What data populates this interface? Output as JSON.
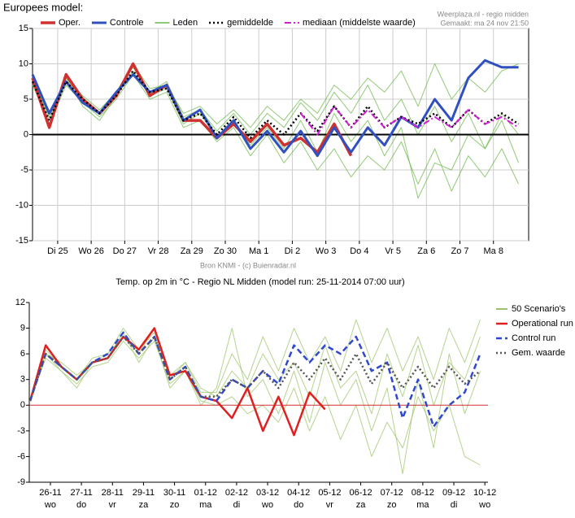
{
  "chart_data": [
    {
      "type": "line",
      "title": "Europees model:",
      "source": "Weerplaza.nl - regio midden",
      "created": "Gemaakt: ma 24 nov 21:50",
      "footer": "Bron KNMI - (c) Buienradar.nl",
      "x": [
        -0.25,
        0.25,
        0.75,
        1.25,
        1.75,
        2.25,
        2.75,
        3.25,
        3.75,
        4.25,
        4.75,
        5.25,
        5.75,
        6.25,
        6.75,
        7.25,
        7.75,
        8.25,
        8.75,
        9.25,
        9.75,
        10.25,
        10.75,
        11.25,
        11.75,
        12.25,
        12.75,
        13.25,
        13.75,
        14.25
      ],
      "xlim": [
        -0.25,
        14.55
      ],
      "xticks": [
        {
          "value": 0.5,
          "label": "Di 25"
        },
        {
          "value": 1.5,
          "label": "Wo 26"
        },
        {
          "value": 2.5,
          "label": "Do 27"
        },
        {
          "value": 3.5,
          "label": "Vr 28"
        },
        {
          "value": 4.5,
          "label": "Za 29"
        },
        {
          "value": 5.5,
          "label": "Zo 30"
        },
        {
          "value": 6.5,
          "label": "Ma 1"
        },
        {
          "value": 7.5,
          "label": "Di 2"
        },
        {
          "value": 8.5,
          "label": "Wo 3"
        },
        {
          "value": 9.5,
          "label": "Do 4"
        },
        {
          "value": 10.5,
          "label": "Vr 5"
        },
        {
          "value": 11.5,
          "label": "Za 6"
        },
        {
          "value": 12.5,
          "label": "Zo 7"
        },
        {
          "value": 13.5,
          "label": "Ma 8"
        }
      ],
      "ylim": [
        -15,
        15
      ],
      "yticks": [
        -15,
        -10,
        -5,
        0,
        5,
        10,
        15
      ],
      "grid": true,
      "zero_line_color": "#000000",
      "members": {
        "name": "Leden",
        "color": "#6cb84a",
        "values": [
          [
            8,
            2,
            8,
            5,
            3,
            6,
            9.5,
            6,
            7.5,
            2.5,
            3.5,
            0.5,
            3,
            0,
            3,
            1,
            4.5,
            2,
            6,
            3,
            7,
            2,
            5,
            0,
            4,
            -1,
            3,
            -2,
            2,
            -4
          ],
          [
            7,
            1.5,
            7,
            4.5,
            2.5,
            5,
            8.5,
            5,
            6,
            1,
            2,
            -1,
            1,
            -3,
            0,
            -4,
            -1,
            -5,
            -2,
            -6,
            -3,
            -5,
            -1,
            -7,
            -2,
            -8,
            -3,
            -6,
            -2,
            -7
          ],
          [
            8,
            2.5,
            7.5,
            5.5,
            3.5,
            6,
            10,
            6.5,
            7,
            3,
            4,
            1.5,
            3.5,
            1,
            4,
            2,
            5,
            3,
            7,
            5,
            8,
            6,
            9,
            4,
            10,
            5,
            8,
            6,
            9,
            10
          ],
          [
            7.5,
            1,
            8,
            4,
            2,
            5.5,
            9,
            5.5,
            6.5,
            1.5,
            3,
            -0.5,
            2,
            -1.5,
            1,
            -2,
            2,
            -2.5,
            3,
            -1,
            2,
            -3,
            1,
            -9,
            -4,
            -5,
            0,
            -2,
            3,
            0
          ]
        ]
      },
      "series": [
        {
          "name": "Oper.",
          "color": "#d03030",
          "dash": "solid",
          "width": 3.5,
          "values": [
            8,
            1,
            8.5,
            5,
            3,
            5.5,
            10,
            5.5,
            7,
            2,
            2,
            -0.5,
            1.5,
            -1,
            1.5,
            -1.5,
            -0.5,
            -2.5,
            1.5,
            -3,
            null,
            null,
            null,
            null,
            null,
            null,
            null,
            null,
            null,
            null
          ]
        },
        {
          "name": "Controle",
          "color": "#3050c0",
          "dash": "solid",
          "width": 3,
          "values": [
            8.5,
            3,
            7.5,
            4.5,
            3,
            6,
            8.5,
            6,
            7,
            2,
            3.5,
            -0.5,
            2,
            -2,
            0.5,
            -2.5,
            0.5,
            -3,
            1,
            -2.5,
            1,
            -1.5,
            2.5,
            1,
            5,
            2,
            8,
            10.5,
            9.5,
            9.5
          ]
        },
        {
          "name": "gemiddelde",
          "color": "#000000",
          "dash": "dotted",
          "width": 2.5,
          "values": [
            7.5,
            2,
            7.5,
            5,
            3,
            5.5,
            9,
            6,
            6.5,
            2,
            3,
            0,
            2.5,
            -0.5,
            2,
            0,
            3,
            0.5,
            4,
            1,
            4,
            1,
            2.5,
            1.5,
            3,
            1,
            3.5,
            1.5,
            3,
            1.5
          ]
        },
        {
          "name": "mediaan (middelste waarde)",
          "color": "#d020d0",
          "dash": "dashdot",
          "width": 2,
          "values": [
            null,
            null,
            null,
            null,
            null,
            null,
            null,
            null,
            null,
            null,
            null,
            null,
            null,
            null,
            null,
            null,
            3,
            0,
            4,
            1,
            3.5,
            1,
            2.5,
            1,
            2.5,
            1,
            3.5,
            1.5,
            2.5,
            1
          ]
        }
      ]
    },
    {
      "type": "line",
      "title": "Temp. op 2m in °C - Regio NL Midden (model run: 25-11-2014 07:00 uur)",
      "x": [
        -0.65,
        -0.15,
        0.35,
        0.85,
        1.35,
        1.85,
        2.35,
        2.85,
        3.35,
        3.85,
        4.35,
        4.85,
        5.35,
        5.85,
        6.35,
        6.85,
        7.35,
        7.85,
        8.35,
        8.85,
        9.35,
        9.85,
        10.35,
        10.85,
        11.35,
        11.85,
        12.35,
        12.85,
        13.35,
        13.85
      ],
      "xlim": [
        -0.68,
        14.1
      ],
      "xticks": [
        {
          "value": 0,
          "label": "26-11",
          "day": "wo"
        },
        {
          "value": 1,
          "label": "27-11",
          "day": "do"
        },
        {
          "value": 2,
          "label": "28-11",
          "day": "vr"
        },
        {
          "value": 3,
          "label": "29-11",
          "day": "za"
        },
        {
          "value": 4,
          "label": "30-11",
          "day": "zo"
        },
        {
          "value": 5,
          "label": "01-12",
          "day": "ma"
        },
        {
          "value": 6,
          "label": "02-12",
          "day": "di"
        },
        {
          "value": 7,
          "label": "03-12",
          "day": "wo"
        },
        {
          "value": 8,
          "label": "04-12",
          "day": "do"
        },
        {
          "value": 9,
          "label": "05-12",
          "day": "vr"
        },
        {
          "value": 10,
          "label": "06-12",
          "day": "za"
        },
        {
          "value": 11,
          "label": "07-12",
          "day": "zo"
        },
        {
          "value": 12,
          "label": "08-12",
          "day": "ma"
        },
        {
          "value": 13,
          "label": "09-12",
          "day": "di"
        },
        {
          "value": 14,
          "label": "10-12",
          "day": "wo"
        }
      ],
      "ylim": [
        -9,
        12
      ],
      "yticks": [
        -9,
        -6,
        -3,
        0,
        3,
        6,
        9,
        12
      ],
      "grid": false,
      "zero_line_color": "#d03030",
      "legend": "right",
      "members": {
        "name": "50 Scenario's",
        "color": "#9cc46a",
        "values": [
          [
            0.5,
            6.5,
            4.5,
            3,
            5.5,
            6,
            9,
            6.5,
            8.5,
            3.5,
            5,
            1.5,
            1.5,
            6,
            3,
            8,
            4,
            9,
            5,
            8,
            4,
            10,
            5,
            9,
            4,
            8,
            3,
            9,
            5,
            10
          ],
          [
            0.5,
            5.5,
            4,
            2.5,
            4.5,
            5,
            7.5,
            5.5,
            7.5,
            2.5,
            4,
            0.5,
            0,
            1,
            -1,
            0,
            -2,
            2,
            -3,
            1,
            -4,
            0,
            -6,
            -2,
            -5,
            1,
            -3,
            0,
            -6,
            -7
          ],
          [
            0.5,
            6,
            5,
            3.5,
            5,
            6,
            8,
            6,
            9,
            3,
            5,
            2,
            1,
            4,
            2,
            6,
            3,
            5,
            1,
            7,
            2,
            4,
            -1,
            6,
            1,
            7,
            0,
            5,
            3,
            8
          ],
          [
            0.5,
            6,
            4,
            2,
            5,
            5.5,
            8.5,
            5,
            8,
            2,
            4,
            0,
            2,
            9,
            1,
            3,
            -1,
            4,
            -2,
            5,
            0,
            3,
            -3,
            2,
            -8,
            3,
            -5,
            6,
            -1,
            4
          ]
        ]
      },
      "series": [
        {
          "name": "Operational run",
          "color": "#e02020",
          "dash": "solid",
          "width": 2.5,
          "values": [
            0.5,
            7,
            4.5,
            3,
            5,
            5.5,
            8,
            6.5,
            9,
            3.5,
            4,
            1,
            0.5,
            -1.5,
            2,
            -3,
            1,
            -3.5,
            1.5,
            -0.5,
            null,
            null,
            null,
            null,
            null,
            null,
            null,
            null,
            null,
            null
          ]
        },
        {
          "name": "Control run",
          "color": "#3048d0",
          "dash": "dashed",
          "width": 2.5,
          "values": [
            0.5,
            6,
            4.5,
            3,
            5,
            6,
            8.5,
            6,
            8,
            3,
            4.5,
            1,
            0.5,
            3,
            2,
            4,
            2.5,
            7,
            5,
            7,
            6,
            8,
            4,
            5,
            -1.5,
            3,
            -2.5,
            0,
            1.5,
            6
          ]
        },
        {
          "name": "Gem. waarde",
          "color": "#555555",
          "dash": "dotted",
          "width": 2.5,
          "values": [
            0.5,
            6,
            4.5,
            3,
            5,
            5.5,
            8,
            6,
            8,
            3,
            4.5,
            1,
            1,
            3,
            2,
            4,
            2,
            5,
            3,
            5.5,
            3,
            6,
            2.5,
            5,
            2,
            4.5,
            2,
            4.5,
            2.5,
            4
          ]
        }
      ]
    }
  ]
}
